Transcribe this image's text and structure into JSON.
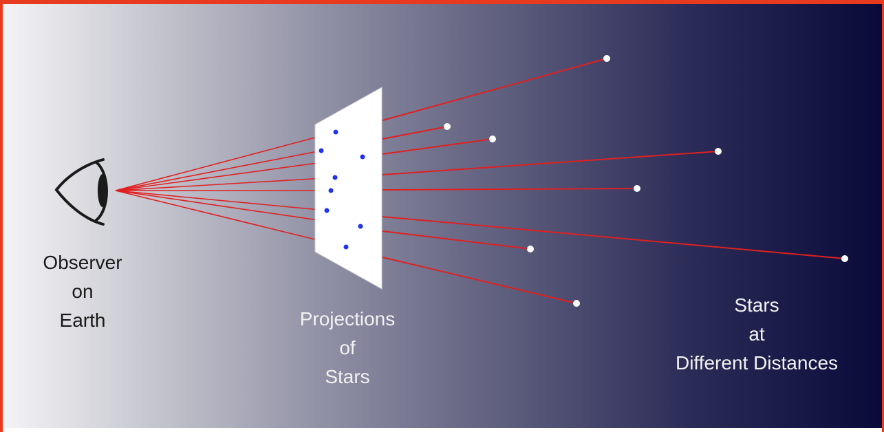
{
  "diagram": {
    "icons": {
      "observer": "eye-icon",
      "screen": "projection-plane",
      "star": "star-dot"
    },
    "colors": {
      "border": "#e83a1f",
      "ray": "#e02020",
      "star": "#ffffff",
      "projection_dot": "#2233ee",
      "screen": "#ffffff"
    },
    "labels": {
      "observer": [
        "Observer",
        "on",
        "Earth"
      ],
      "projections": [
        "Projections",
        "of",
        "Stars"
      ],
      "stars": [
        "Stars",
        "at",
        "Different Distances"
      ]
    }
  }
}
